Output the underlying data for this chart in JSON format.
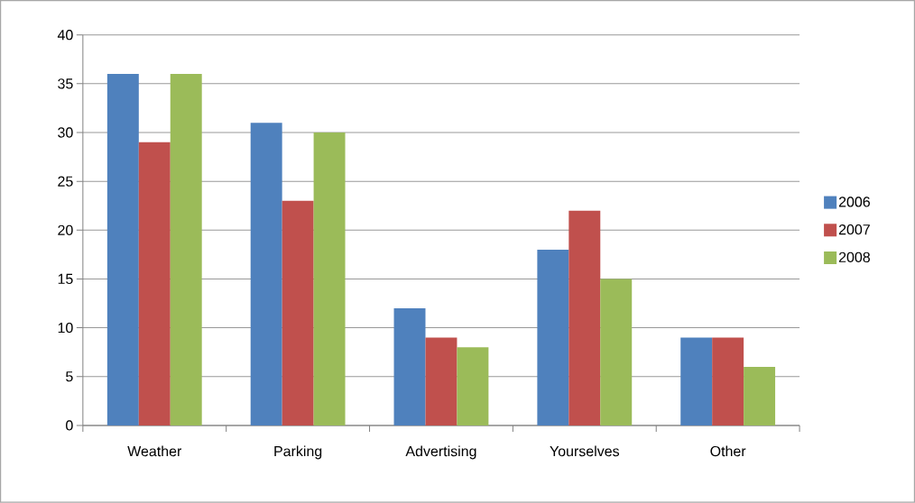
{
  "chart_data": {
    "type": "bar",
    "categories": [
      "Weather",
      "Parking",
      "Advertising",
      "Yourselves",
      "Other"
    ],
    "series": [
      {
        "name": "2006",
        "color": "#4f81bd",
        "values": [
          36,
          31,
          12,
          18,
          9
        ]
      },
      {
        "name": "2007",
        "color": "#c0504d",
        "values": [
          29,
          23,
          9,
          22,
          9
        ]
      },
      {
        "name": "2008",
        "color": "#9bbb59",
        "values": [
          36,
          30,
          8,
          15,
          6
        ]
      }
    ],
    "ylim": [
      0,
      40
    ],
    "yticks": [
      0,
      5,
      10,
      15,
      20,
      25,
      30,
      35,
      40
    ],
    "grid": "y",
    "legend": "right"
  }
}
